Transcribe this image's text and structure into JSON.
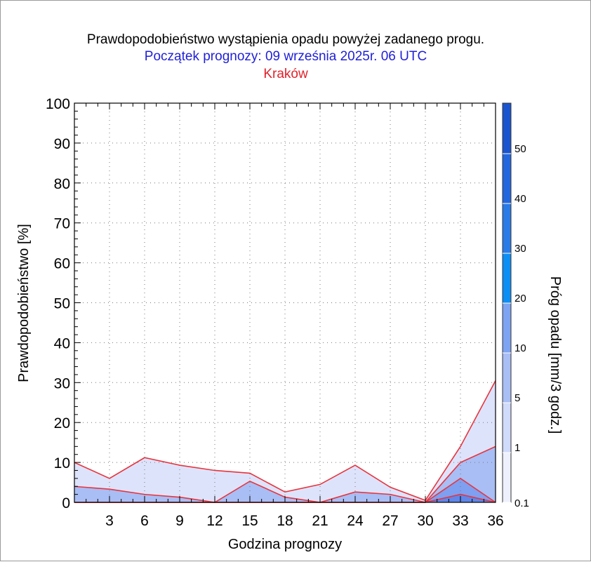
{
  "chart_data": {
    "type": "area",
    "title": "Prawdopodobieństwo wystąpienia opadu powyżej zadanego progu.",
    "subtitle": "Początek prognozy: 09 września 2025r. 06 UTC",
    "location": "Kraków",
    "xlabel": "Godzina prognozy",
    "ylabel": "Prawdopodobieństwo [%]",
    "colorbar_label": "Próg opadu [mm/3 godz.]",
    "xlim": [
      0,
      36
    ],
    "ylim": [
      0,
      100
    ],
    "x_ticks": [
      3,
      6,
      9,
      12,
      15,
      18,
      21,
      24,
      27,
      30,
      33,
      36
    ],
    "y_ticks": [
      0,
      10,
      20,
      30,
      40,
      50,
      60,
      70,
      80,
      90,
      100
    ],
    "x": [
      0,
      3,
      6,
      9,
      12,
      15,
      18,
      21,
      24,
      27,
      30,
      33,
      36
    ],
    "series": [
      {
        "threshold": 0.1,
        "color": "#dde3fb",
        "values": [
          10,
          6,
          11.2,
          9.3,
          8,
          7.3,
          2.6,
          4.5,
          9.3,
          3.8,
          0.5,
          14,
          30.5
        ]
      },
      {
        "threshold": 1,
        "color": "#a8bef5",
        "values": [
          4,
          3.3,
          2,
          1.3,
          0,
          5.3,
          1.3,
          0,
          2.6,
          2,
          0,
          10,
          14
        ]
      },
      {
        "threshold": 5,
        "color": "#7f9ff0",
        "values": [
          0,
          0,
          0,
          0,
          0,
          0,
          0,
          0,
          0,
          0,
          0,
          6,
          0
        ]
      },
      {
        "threshold": 10,
        "color": "#5f86e8",
        "values": [
          0,
          0,
          0,
          0,
          0,
          0,
          0,
          0,
          0,
          0,
          0,
          2,
          0
        ]
      }
    ],
    "line_color": "#e8343c",
    "colorbar": {
      "levels": [
        0.1,
        1,
        5,
        10,
        20,
        30,
        40,
        50
      ],
      "labels": [
        "0.1",
        "1",
        "5",
        "10",
        "20",
        "30",
        "40",
        "50"
      ],
      "colors": [
        "#eef1fd",
        "#d0dafa",
        "#a8bef5",
        "#7ea3f2",
        "#0d8ef5",
        "#2a7be8",
        "#2367de",
        "#1a55cf",
        "#0f3bab"
      ]
    },
    "grid": true,
    "legend": "colorbar-right"
  }
}
